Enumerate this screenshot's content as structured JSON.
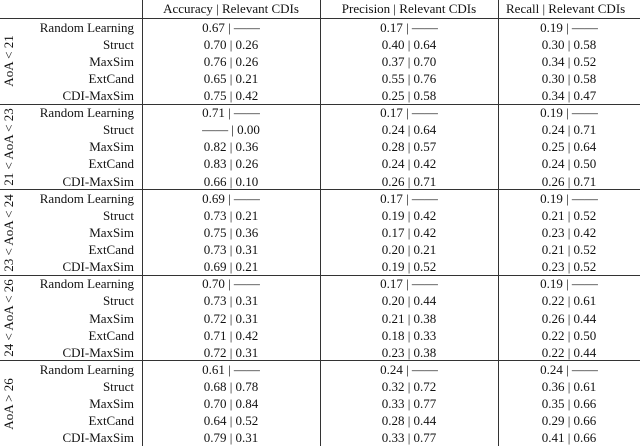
{
  "table": {
    "columns": [
      "Accuracy | Relevant CDIs",
      "Precision | Relevant CDIs",
      "Recall | Relevant CDIs"
    ],
    "groups": [
      {
        "label": "AoA < 21",
        "rows": [
          {
            "method": "Random Learning",
            "cells": [
              "0.67 | ——",
              "0.17 | ——",
              "0.19 | ——"
            ]
          },
          {
            "method": "Struct",
            "cells": [
              "0.70 | 0.26",
              "0.40 | 0.64",
              "0.30 | 0.58"
            ]
          },
          {
            "method": "MaxSim",
            "cells": [
              "0.76 | 0.26",
              "0.37 | 0.70",
              "0.34 | 0.52"
            ]
          },
          {
            "method": "ExtCand",
            "cells": [
              "0.65 | 0.21",
              "0.55 | 0.76",
              "0.30 | 0.58"
            ]
          },
          {
            "method": "CDI-MaxSim",
            "cells": [
              "0.75 | 0.42",
              "0.25 | 0.58",
              "0.34 | 0.47"
            ]
          }
        ]
      },
      {
        "label": "21 < AoA < 23",
        "rows": [
          {
            "method": "Random Learning",
            "cells": [
              "0.71 | ——",
              "0.17 | ——",
              "0.19 | ——"
            ]
          },
          {
            "method": "Struct",
            "cells": [
              "—— | 0.00",
              "0.24 | 0.64",
              "0.24 | 0.71"
            ]
          },
          {
            "method": "MaxSim",
            "cells": [
              "0.82 | 0.36",
              "0.28 | 0.57",
              "0.25 | 0.64"
            ]
          },
          {
            "method": "ExtCand",
            "cells": [
              "0.83 | 0.26",
              "0.24 | 0.42",
              "0.24 | 0.50"
            ]
          },
          {
            "method": "CDI-MaxSim",
            "cells": [
              "0.66 | 0.10",
              "0.26 | 0.71",
              "0.26 | 0.71"
            ]
          }
        ]
      },
      {
        "label": "23 < AoA < 24",
        "rows": [
          {
            "method": "Random Learning",
            "cells": [
              "0.69 | ——",
              "0.17 | ——",
              "0.19 | ——"
            ]
          },
          {
            "method": "Struct",
            "cells": [
              "0.73 | 0.21",
              "0.19 | 0.42",
              "0.21 | 0.52"
            ]
          },
          {
            "method": "MaxSim",
            "cells": [
              "0.75 | 0.36",
              "0.17 | 0.42",
              "0.23 | 0.42"
            ]
          },
          {
            "method": "ExtCand",
            "cells": [
              "0.73 | 0.31",
              "0.20 | 0.21",
              "0.21 | 0.52"
            ]
          },
          {
            "method": "CDI-MaxSim",
            "cells": [
              "0.69 | 0.21",
              "0.19 | 0.52",
              "0.23 | 0.52"
            ]
          }
        ]
      },
      {
        "label": "24 < AoA < 26",
        "rows": [
          {
            "method": "Random Learning",
            "cells": [
              "0.70 | ——",
              "0.17 | ——",
              "0.19 | ——"
            ]
          },
          {
            "method": "Struct",
            "cells": [
              "0.73 | 0.31",
              "0.20 | 0.44",
              "0.22 | 0.61"
            ]
          },
          {
            "method": "MaxSim",
            "cells": [
              "0.72 | 0.31",
              "0.21 | 0.38",
              "0.26 | 0.44"
            ]
          },
          {
            "method": "ExtCand",
            "cells": [
              "0.71 | 0.42",
              "0.18 | 0.33",
              "0.22 | 0.50"
            ]
          },
          {
            "method": "CDI-MaxSim",
            "cells": [
              "0.72 | 0.31",
              "0.23 | 0.38",
              "0.22 | 0.44"
            ]
          }
        ]
      },
      {
        "label": "AoA > 26",
        "rows": [
          {
            "method": "Random Learning",
            "cells": [
              "0.61 | ——",
              "0.24 | ——",
              "0.24 | ——"
            ]
          },
          {
            "method": "Struct",
            "cells": [
              "0.68 | 0.78",
              "0.32 | 0.72",
              "0.36 | 0.61"
            ]
          },
          {
            "method": "MaxSim",
            "cells": [
              "0.70 | 0.84",
              "0.33 | 0.77",
              "0.35 | 0.66"
            ]
          },
          {
            "method": "ExtCand",
            "cells": [
              "0.64 | 0.52",
              "0.28 | 0.44",
              "0.29 | 0.66"
            ]
          },
          {
            "method": "CDI-MaxSim",
            "cells": [
              "0.79 | 0.31",
              "0.33 | 0.77",
              "0.41 | 0.66"
            ]
          }
        ]
      }
    ]
  }
}
